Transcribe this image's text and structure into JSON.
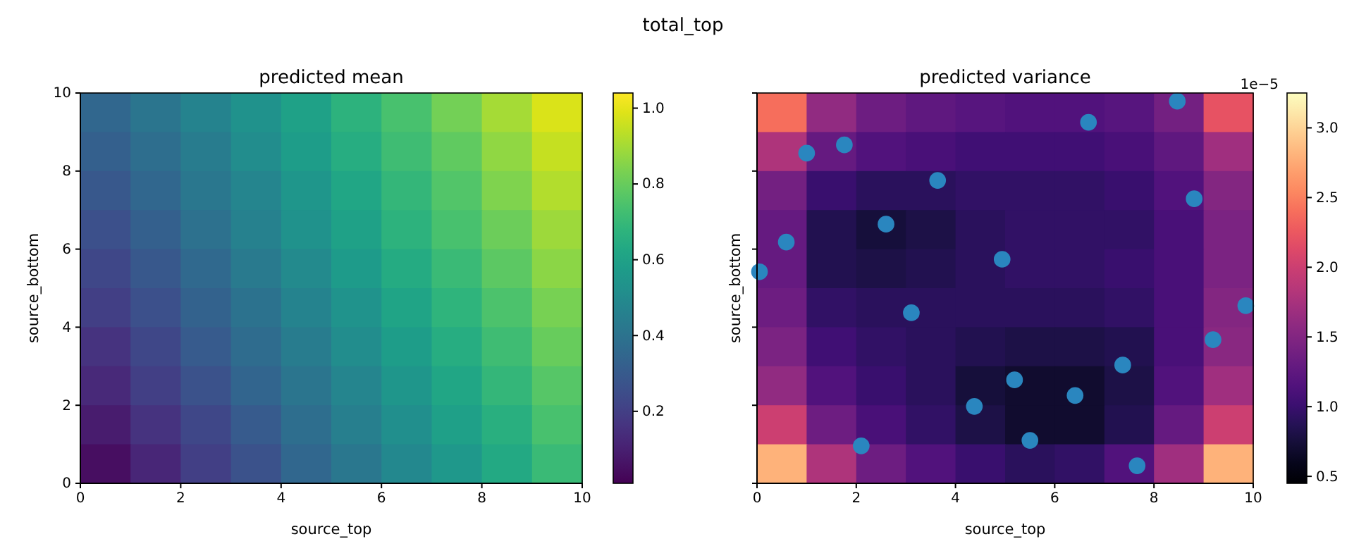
{
  "chart_data": [
    {
      "type": "heatmap",
      "title": "predicted mean",
      "xlabel": "source_top",
      "ylabel": "source_bottom",
      "annotations": [
        "total_top"
      ],
      "xlim": [
        0,
        10
      ],
      "xticks": [
        0,
        2,
        4,
        6,
        8,
        10
      ],
      "ylim": [
        0,
        10
      ],
      "yticks": [
        0,
        2,
        4,
        6,
        8,
        10
      ],
      "clim": [
        0.01,
        1.04
      ],
      "cticks": [
        0.2,
        0.4,
        0.6,
        0.8,
        {
          "value": 1,
          "label": "1.0"
        }
      ],
      "cells": [
        [
          0.35,
          0.41,
          0.47,
          0.53,
          0.6,
          0.67,
          0.74,
          0.82,
          0.9,
          0.98
        ],
        [
          0.32,
          0.38,
          0.44,
          0.51,
          0.58,
          0.65,
          0.72,
          0.79,
          0.87,
          0.95
        ],
        [
          0.29,
          0.35,
          0.42,
          0.48,
          0.55,
          0.62,
          0.69,
          0.76,
          0.84,
          0.92
        ],
        [
          0.26,
          0.32,
          0.39,
          0.46,
          0.53,
          0.6,
          0.67,
          0.74,
          0.81,
          0.89
        ],
        [
          0.23,
          0.29,
          0.36,
          0.43,
          0.5,
          0.57,
          0.64,
          0.71,
          0.78,
          0.86
        ],
        [
          0.2,
          0.26,
          0.33,
          0.4,
          0.47,
          0.54,
          0.61,
          0.68,
          0.75,
          0.83
        ],
        [
          0.16,
          0.23,
          0.3,
          0.37,
          0.44,
          0.51,
          0.58,
          0.65,
          0.72,
          0.8
        ],
        [
          0.13,
          0.2,
          0.27,
          0.34,
          0.41,
          0.48,
          0.55,
          0.62,
          0.69,
          0.77
        ],
        [
          0.09,
          0.16,
          0.23,
          0.3,
          0.38,
          0.45,
          0.52,
          0.59,
          0.66,
          0.74
        ],
        [
          0.05,
          0.12,
          0.2,
          0.27,
          0.35,
          0.42,
          0.49,
          0.56,
          0.63,
          0.71
        ]
      ]
    },
    {
      "type": "heatmap",
      "title": "predicted variance",
      "xlabel": "source_top",
      "ylabel": "source_bottom",
      "annotations": [
        "1e−5"
      ],
      "tick_labels": "x",
      "xlim": [
        0,
        10
      ],
      "xticks": [
        0,
        2,
        4,
        6,
        8,
        10
      ],
      "ylim": [
        0,
        10
      ],
      "yticks": [
        0,
        2,
        4,
        6,
        8,
        10
      ],
      "clim": [
        0.45,
        3.25
      ],
      "cticks": [
        0.5,
        {
          "value": 1,
          "label": "1.0"
        },
        1.5,
        {
          "value": 2,
          "label": "2.0"
        },
        2.5,
        {
          "value": 3,
          "label": "3.0"
        }
      ],
      "cells": [
        [
          2.4,
          1.6,
          1.35,
          1.25,
          1.2,
          1.15,
          1.15,
          1.2,
          1.4,
          2.2
        ],
        [
          1.8,
          1.3,
          1.15,
          1.1,
          1.05,
          1.05,
          1.05,
          1.1,
          1.25,
          1.7
        ],
        [
          1.4,
          1.0,
          0.9,
          0.9,
          0.95,
          0.95,
          0.95,
          1.0,
          1.15,
          1.5
        ],
        [
          1.3,
          0.85,
          0.75,
          0.8,
          0.9,
          0.95,
          0.95,
          0.95,
          1.1,
          1.45
        ],
        [
          1.3,
          0.85,
          0.8,
          0.85,
          0.9,
          0.95,
          0.95,
          1.0,
          1.1,
          1.45
        ],
        [
          1.35,
          0.95,
          0.9,
          0.9,
          0.9,
          0.9,
          0.9,
          0.95,
          1.1,
          1.5
        ],
        [
          1.45,
          1.05,
          0.95,
          0.9,
          0.85,
          0.8,
          0.8,
          0.85,
          1.1,
          1.55
        ],
        [
          1.6,
          1.15,
          1.0,
          0.9,
          0.75,
          0.7,
          0.7,
          0.8,
          1.15,
          1.7
        ],
        [
          2.0,
          1.35,
          1.1,
          0.95,
          0.8,
          0.7,
          0.7,
          0.85,
          1.3,
          2.0
        ],
        [
          2.8,
          1.8,
          1.35,
          1.15,
          1.0,
          0.9,
          0.95,
          1.15,
          1.7,
          2.8
        ]
      ],
      "series": [
        {
          "type": "scatter",
          "color": "#2a86bf",
          "marker": "circle",
          "x": [
            8.47,
            6.68,
            1.76,
            1.0,
            3.64,
            8.81,
            2.6,
            0.59,
            4.94,
            0.05,
            9.85,
            3.11,
            9.19,
            7.37,
            5.19,
            6.41,
            4.38,
            2.1,
            5.5,
            7.66
          ],
          "values": [
            9.79,
            9.25,
            8.67,
            8.46,
            7.76,
            7.29,
            6.64,
            6.18,
            5.74,
            5.42,
            4.55,
            4.37,
            3.68,
            3.03,
            2.65,
            2.25,
            1.97,
            0.96,
            1.1,
            0.45
          ]
        }
      ]
    }
  ]
}
